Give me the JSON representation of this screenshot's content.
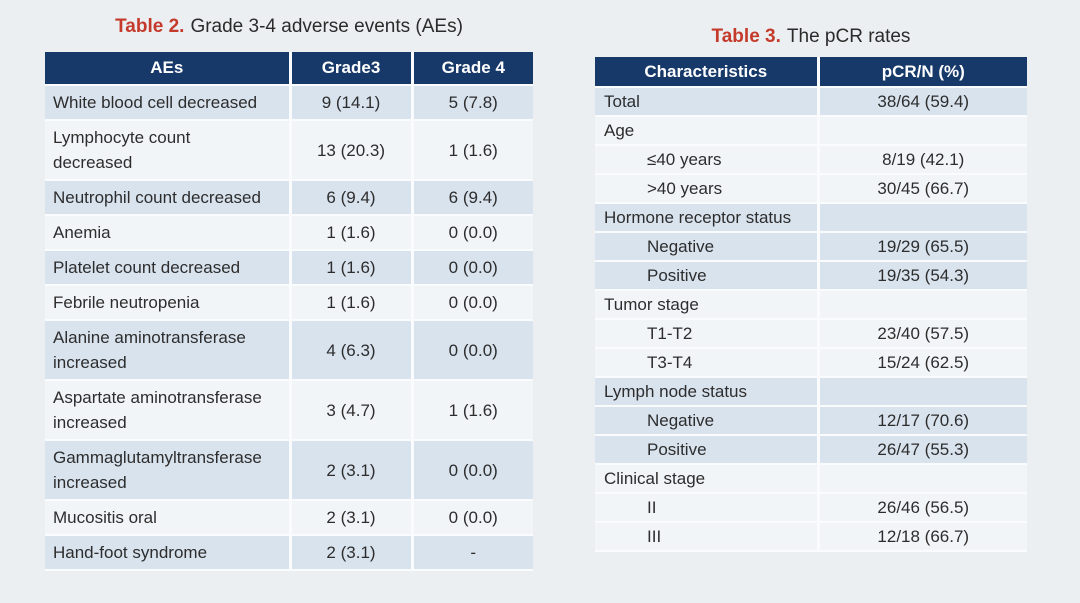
{
  "colors": {
    "page_background": "#eceff1",
    "header_bg": "#17396a",
    "header_text": "#ffffff",
    "row_blue": "#d9e3ee",
    "row_light": "#f2f5f8",
    "title_red": "#c43b2c",
    "body_text": "#2d2d2d"
  },
  "table2": {
    "title_prefix": "Table 2.",
    "title_rest": "Grade 3-4 adverse events (AEs)",
    "columns": [
      "AEs",
      "Grade3",
      "Grade 4"
    ],
    "rows": [
      {
        "ae": "White blood cell decreased",
        "g3": "9 (14.1)",
        "g4": "5 (7.8)"
      },
      {
        "ae": "Lymphocyte count\ndecreased",
        "g3": "13 (20.3)",
        "g4": "1 (1.6)"
      },
      {
        "ae": "Neutrophil count decreased",
        "g3": "6 (9.4)",
        "g4": "6 (9.4)"
      },
      {
        "ae": "Anemia",
        "g3": "1 (1.6)",
        "g4": "0 (0.0)"
      },
      {
        "ae": "Platelet count decreased",
        "g3": "1 (1.6)",
        "g4": "0 (0.0)"
      },
      {
        "ae": "Febrile neutropenia",
        "g3": "1 (1.6)",
        "g4": "0 (0.0)"
      },
      {
        "ae": "Alanine aminotransferase\nincreased",
        "g3": "4 (6.3)",
        "g4": "0 (0.0)"
      },
      {
        "ae": "Aspartate aminotransferase\nincreased",
        "g3": "3 (4.7)",
        "g4": "1 (1.6)"
      },
      {
        "ae": "Gammaglutamyltransferase\nincreased",
        "g3": "2 (3.1)",
        "g4": "0 (0.0)"
      },
      {
        "ae": "Mucositis oral",
        "g3": "2 (3.1)",
        "g4": "0 (0.0)"
      },
      {
        "ae": "Hand-foot syndrome",
        "g3": "2 (3.1)",
        "g4": "-"
      }
    ]
  },
  "table3": {
    "title_prefix": "Table 3.",
    "title_rest": "The pCR rates",
    "columns": [
      "Characteristics",
      "pCR/N (%)"
    ],
    "rows": [
      {
        "label": "Total",
        "value": "38/64 (59.4)",
        "indent": false,
        "shade": "blue"
      },
      {
        "label": "Age",
        "value": "",
        "indent": false,
        "shade": "light"
      },
      {
        "label": "≤40 years",
        "value": "8/19 (42.1)",
        "indent": true,
        "shade": "light"
      },
      {
        "label": ">40 years",
        "value": "30/45 (66.7)",
        "indent": true,
        "shade": "light"
      },
      {
        "label": "Hormone receptor status",
        "value": "",
        "indent": false,
        "shade": "blue"
      },
      {
        "label": "Negative",
        "value": "19/29 (65.5)",
        "indent": true,
        "shade": "blue"
      },
      {
        "label": "Positive",
        "value": "19/35 (54.3)",
        "indent": true,
        "shade": "blue"
      },
      {
        "label": "Tumor stage",
        "value": "",
        "indent": false,
        "shade": "light"
      },
      {
        "label": "T1-T2",
        "value": "23/40 (57.5)",
        "indent": true,
        "shade": "light"
      },
      {
        "label": "T3-T4",
        "value": "15/24 (62.5)",
        "indent": true,
        "shade": "light"
      },
      {
        "label": "Lymph node status",
        "value": "",
        "indent": false,
        "shade": "blue"
      },
      {
        "label": "Negative",
        "value": "12/17 (70.6)",
        "indent": true,
        "shade": "blue"
      },
      {
        "label": "Positive",
        "value": "26/47 (55.3)",
        "indent": true,
        "shade": "blue"
      },
      {
        "label": "Clinical stage",
        "value": "",
        "indent": false,
        "shade": "light"
      },
      {
        "label": "II",
        "value": "26/46 (56.5)",
        "indent": true,
        "shade": "light"
      },
      {
        "label": "III",
        "value": "12/18 (66.7)",
        "indent": true,
        "shade": "light"
      }
    ]
  }
}
